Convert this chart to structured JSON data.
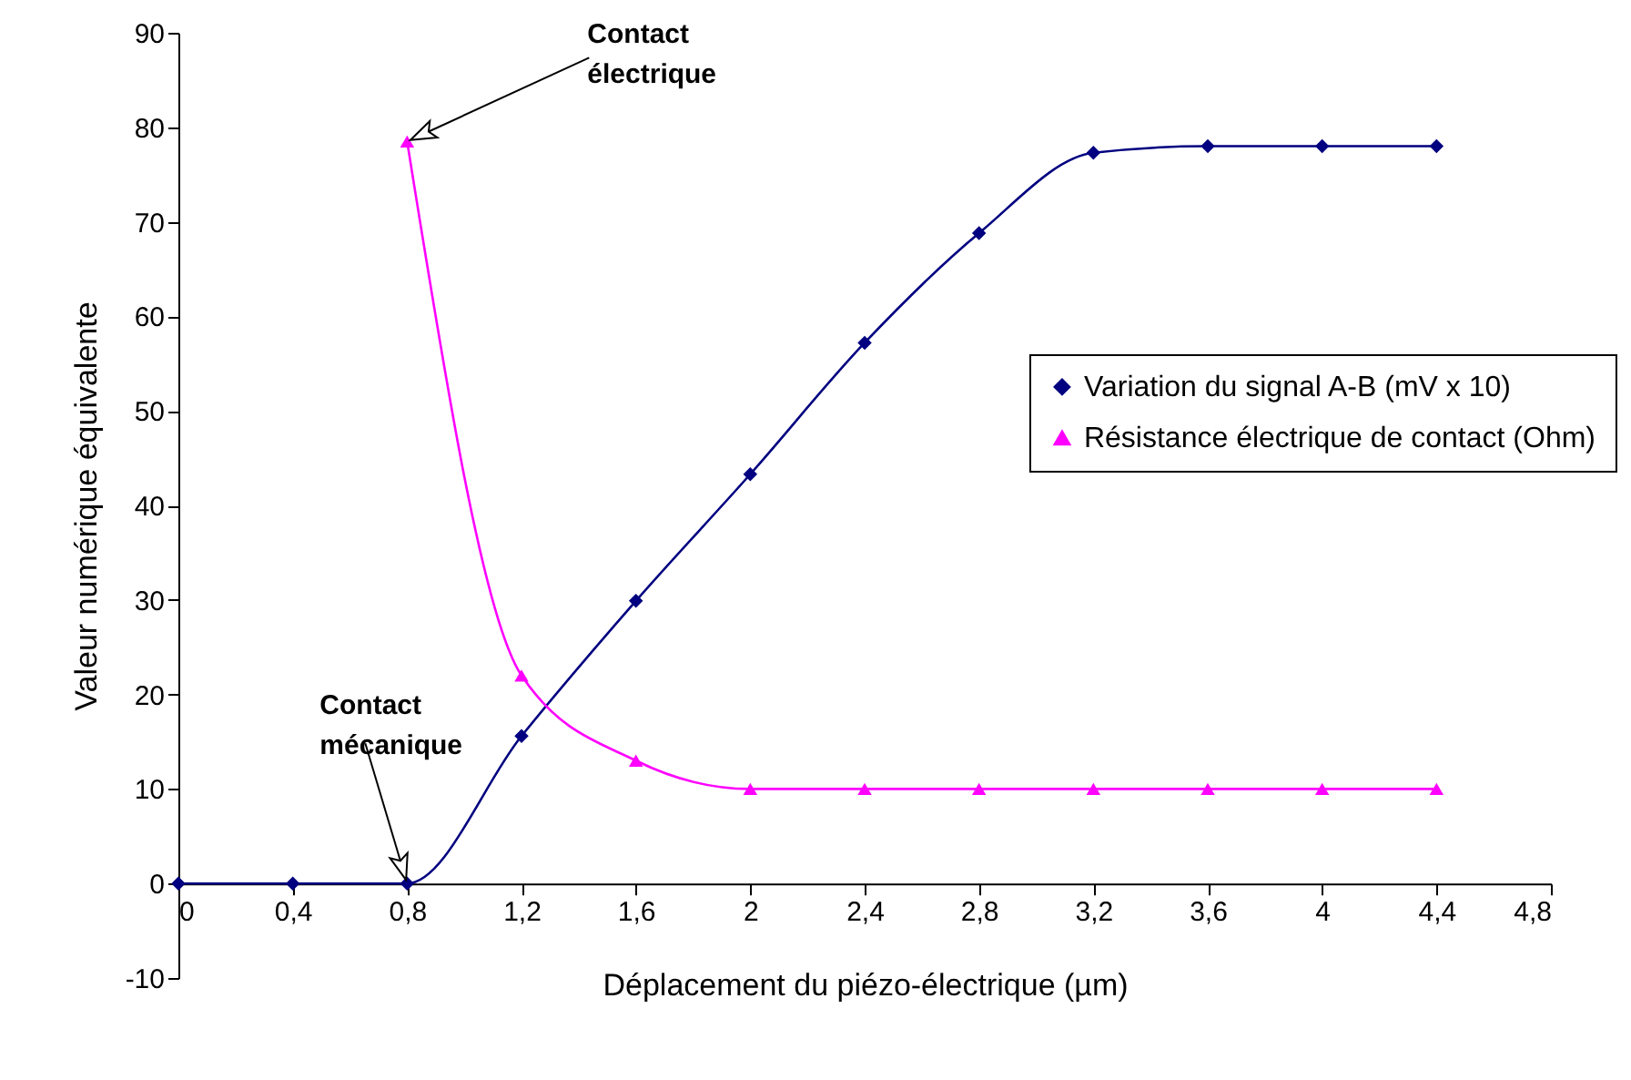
{
  "chart_data": {
    "type": "line",
    "xlabel": "Déplacement du piézo-électrique (µm)",
    "ylabel": "Valeur numérique équivalente",
    "xlim": [
      0,
      4.8
    ],
    "ylim": [
      -10,
      90
    ],
    "xticks": [
      0,
      {
        "value": 0.4,
        "label": "0,4"
      },
      {
        "value": 0.8,
        "label": "0,8"
      },
      {
        "value": 1.2,
        "label": "1,2"
      },
      {
        "value": 1.6,
        "label": "1,6"
      },
      2,
      {
        "value": 2.4,
        "label": "2,4"
      },
      {
        "value": 2.8,
        "label": "2,8"
      },
      {
        "value": 3.2,
        "label": "3,2"
      },
      {
        "value": 3.6,
        "label": "3,6"
      },
      4,
      {
        "value": 4.4,
        "label": "4,4"
      },
      {
        "value": 4.8,
        "label": "4,8"
      }
    ],
    "yticks": [
      -10,
      0,
      10,
      20,
      30,
      40,
      50,
      60,
      70,
      80,
      90
    ],
    "grid": false,
    "legend": "right",
    "line_style": "solid",
    "series": [
      {
        "name": "Variation du signal A-B (mV x 10)",
        "color": "#000080",
        "marker": "diamond",
        "x": [
          0,
          0.4,
          0.8,
          1.2,
          1.6,
          2,
          2.4,
          2.8,
          3.2,
          3.6,
          4,
          4.4
        ],
        "values": [
          0,
          0,
          0,
          15.6,
          29.9,
          43.3,
          57.2,
          68.8,
          77.3,
          78,
          78,
          78
        ]
      },
      {
        "name": "Résistance électrique de contact (Ohm)",
        "color": "#ff00ff",
        "marker": "triangle",
        "x": [
          0.8,
          1.2,
          1.6,
          2,
          2.4,
          2.8,
          3.2,
          3.6,
          4,
          4.4
        ],
        "values": [
          78.5,
          22,
          13,
          10,
          10,
          10,
          10,
          10,
          10,
          10
        ]
      }
    ],
    "annotations": [
      {
        "text": "Contact électrique",
        "x": 0.8,
        "y": 78.5
      },
      {
        "text": "Contact mécanique",
        "x": 0.8,
        "y": 0
      }
    ]
  }
}
